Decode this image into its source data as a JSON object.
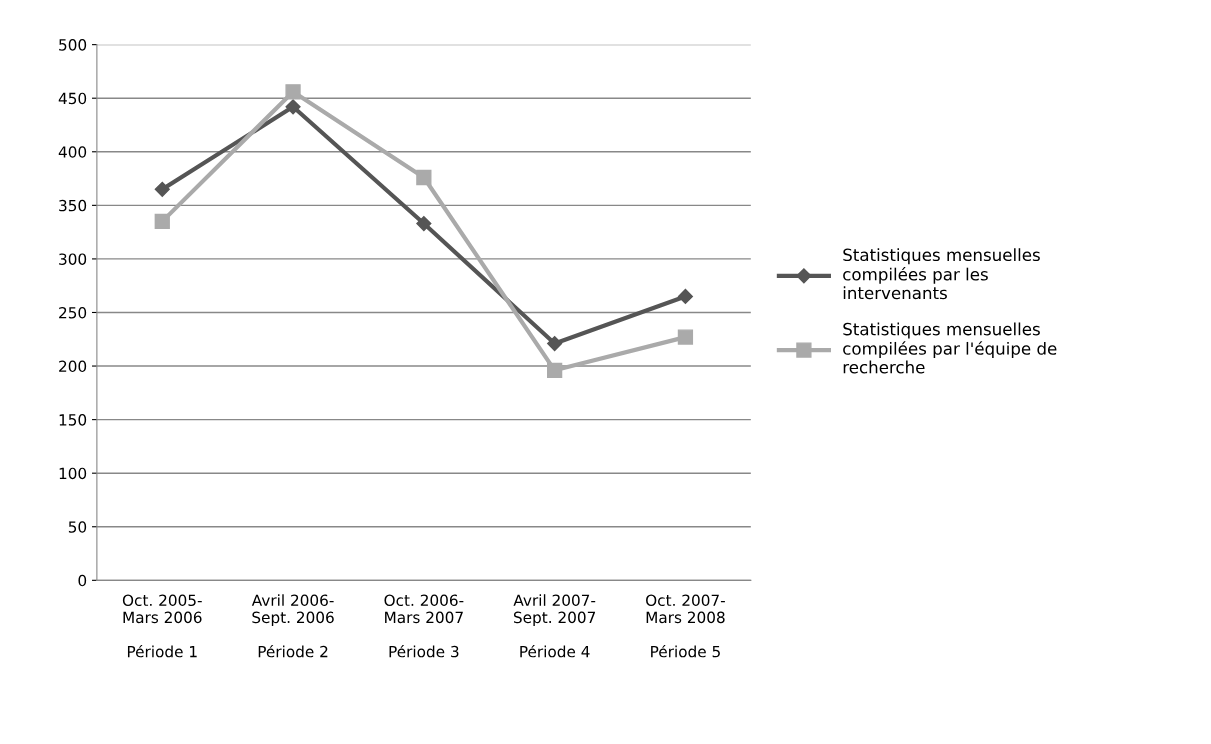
{
  "chart_data": {
    "type": "line",
    "categories": [
      "Oct. 2005-\nMars 2006\n\nPériode 1",
      "Avril 2006-\nSept. 2006\n\nPériode 2",
      "Oct. 2006-\nMars 2007\n\nPériode 3",
      "Avril 2007-\nSept. 2007\n\nPériode 4",
      "Oct. 2007-\nMars 2008\n\nPériode 5"
    ],
    "series": [
      {
        "name": "Statistiques mensuelles compilées par les intervenants",
        "color": "#555555",
        "marker": "diamond",
        "values": [
          365,
          442,
          333,
          221,
          265
        ]
      },
      {
        "name": "Statistiques mensuelles compilées par l'équipe de recherche",
        "color": "#aaaaaa",
        "marker": "square",
        "values": [
          335,
          456,
          376,
          196,
          227
        ]
      }
    ],
    "ylim": [
      0,
      500
    ],
    "yticks": [
      0,
      50,
      100,
      150,
      200,
      250,
      300,
      350,
      400,
      450,
      500
    ],
    "grid": "y",
    "legend": "right",
    "line_style": "solid"
  }
}
